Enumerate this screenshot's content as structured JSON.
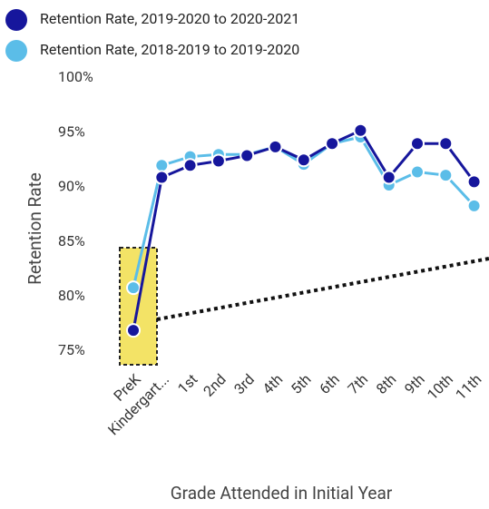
{
  "chart_data": {
    "type": "line",
    "categories": [
      "PreK",
      "Kindergart...",
      "1st",
      "2nd",
      "3rd",
      "4th",
      "5th",
      "6th",
      "7th",
      "8th",
      "9th",
      "10th",
      "11th"
    ],
    "series": [
      {
        "name": "Retention Rate, 2019-2020 to 2020-2021",
        "color": "#16169c",
        "values": [
          76.9,
          90.9,
          92.0,
          92.4,
          92.9,
          93.7,
          92.5,
          94.0,
          95.2,
          90.9,
          94.0,
          94.0,
          90.5
        ]
      },
      {
        "name": "Retention Rate, 2018-2019 to 2019-2020",
        "color": "#5bbde8",
        "values": [
          80.8,
          92.0,
          92.8,
          93.0,
          93.0,
          93.7,
          92.1,
          94.0,
          94.6,
          90.2,
          91.4,
          91.1,
          88.3
        ]
      }
    ],
    "y_label": "Retention Rate",
    "x_label": "Grade Attended in Initial Year",
    "ylim": [
      74,
      100
    ],
    "yticks": [
      {
        "value": 75,
        "label": "75%"
      },
      {
        "value": 80,
        "label": "80%"
      },
      {
        "value": 85,
        "label": "85%"
      },
      {
        "value": 90,
        "label": "90%"
      },
      {
        "value": 95,
        "label": "95%"
      },
      {
        "value": 100,
        "label": "100%"
      }
    ],
    "grid": false
  }
}
